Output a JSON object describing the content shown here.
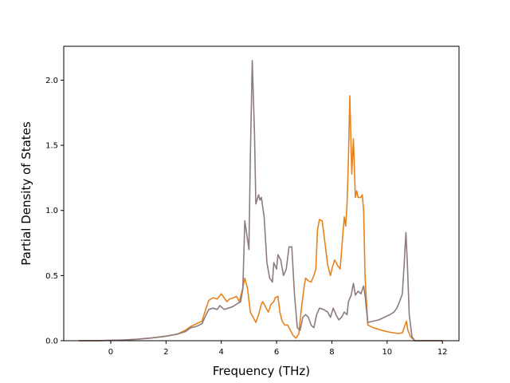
{
  "chart_data": {
    "type": "line",
    "title": "",
    "xlabel": "Frequency (THz)",
    "ylabel": "Partial Density of States",
    "xlim": [
      -1.7,
      12.6
    ],
    "ylim": [
      0,
      2.26
    ],
    "xticks": [
      0,
      2,
      4,
      6,
      8,
      10,
      12
    ],
    "xtick_labels": [
      "0",
      "2",
      "4",
      "6",
      "8",
      "10",
      "12"
    ],
    "yticks": [
      0,
      0.5,
      1.0,
      1.5,
      2.0
    ],
    "ytick_labels": [
      "0.0",
      "0.5",
      "1.0",
      "1.5",
      "2.0"
    ],
    "grid": false,
    "legend": "none",
    "series": [
      {
        "color": "#e8821e",
        "points": [
          [
            -1.15,
            0
          ],
          [
            -0.5,
            0
          ],
          [
            0,
            0.003
          ],
          [
            0.5,
            0.006
          ],
          [
            1.0,
            0.012
          ],
          [
            1.5,
            0.022
          ],
          [
            2.0,
            0.035
          ],
          [
            2.4,
            0.05
          ],
          [
            2.7,
            0.08
          ],
          [
            2.9,
            0.11
          ],
          [
            3.1,
            0.13
          ],
          [
            3.3,
            0.15
          ],
          [
            3.45,
            0.25
          ],
          [
            3.55,
            0.31
          ],
          [
            3.7,
            0.33
          ],
          [
            3.85,
            0.32
          ],
          [
            4.0,
            0.36
          ],
          [
            4.1,
            0.33
          ],
          [
            4.2,
            0.3
          ],
          [
            4.3,
            0.32
          ],
          [
            4.45,
            0.33
          ],
          [
            4.55,
            0.34
          ],
          [
            4.65,
            0.3
          ],
          [
            4.75,
            0.38
          ],
          [
            4.85,
            0.48
          ],
          [
            4.95,
            0.4
          ],
          [
            5.05,
            0.22
          ],
          [
            5.15,
            0.18
          ],
          [
            5.25,
            0.14
          ],
          [
            5.35,
            0.2
          ],
          [
            5.45,
            0.28
          ],
          [
            5.5,
            0.3
          ],
          [
            5.6,
            0.26
          ],
          [
            5.7,
            0.22
          ],
          [
            5.8,
            0.28
          ],
          [
            5.9,
            0.3
          ],
          [
            5.95,
            0.33
          ],
          [
            6.05,
            0.34
          ],
          [
            6.12,
            0.22
          ],
          [
            6.2,
            0.15
          ],
          [
            6.3,
            0.12
          ],
          [
            6.4,
            0.12
          ],
          [
            6.5,
            0.08
          ],
          [
            6.6,
            0.04
          ],
          [
            6.7,
            0.02
          ],
          [
            6.8,
            0.05
          ],
          [
            6.9,
            0.25
          ],
          [
            7.0,
            0.42
          ],
          [
            7.05,
            0.48
          ],
          [
            7.15,
            0.46
          ],
          [
            7.25,
            0.45
          ],
          [
            7.35,
            0.5
          ],
          [
            7.42,
            0.55
          ],
          [
            7.48,
            0.85
          ],
          [
            7.55,
            0.93
          ],
          [
            7.65,
            0.92
          ],
          [
            7.75,
            0.75
          ],
          [
            7.85,
            0.58
          ],
          [
            7.95,
            0.5
          ],
          [
            8.0,
            0.55
          ],
          [
            8.1,
            0.62
          ],
          [
            8.2,
            0.58
          ],
          [
            8.3,
            0.55
          ],
          [
            8.4,
            0.82
          ],
          [
            8.45,
            0.95
          ],
          [
            8.5,
            0.88
          ],
          [
            8.55,
            1.05
          ],
          [
            8.6,
            1.4
          ],
          [
            8.65,
            1.88
          ],
          [
            8.72,
            1.28
          ],
          [
            8.78,
            1.55
          ],
          [
            8.85,
            1.1
          ],
          [
            8.9,
            1.15
          ],
          [
            8.95,
            1.1
          ],
          [
            9.05,
            1.1
          ],
          [
            9.1,
            1.12
          ],
          [
            9.15,
            1.0
          ],
          [
            9.2,
            0.5
          ],
          [
            9.3,
            0.12
          ],
          [
            9.5,
            0.1
          ],
          [
            9.8,
            0.08
          ],
          [
            10.1,
            0.065
          ],
          [
            10.4,
            0.055
          ],
          [
            10.55,
            0.06
          ],
          [
            10.65,
            0.12
          ],
          [
            10.7,
            0.15
          ],
          [
            10.75,
            0.08
          ],
          [
            10.85,
            0.03
          ],
          [
            11.0,
            0
          ],
          [
            12.0,
            0
          ]
        ]
      },
      {
        "color": "#8c7b80",
        "points": [
          [
            -1.15,
            0
          ],
          [
            -0.5,
            0
          ],
          [
            0,
            0.003
          ],
          [
            0.5,
            0.006
          ],
          [
            1.0,
            0.012
          ],
          [
            1.5,
            0.022
          ],
          [
            2.0,
            0.035
          ],
          [
            2.4,
            0.05
          ],
          [
            2.7,
            0.07
          ],
          [
            2.9,
            0.1
          ],
          [
            3.1,
            0.11
          ],
          [
            3.3,
            0.13
          ],
          [
            3.45,
            0.2
          ],
          [
            3.55,
            0.24
          ],
          [
            3.7,
            0.25
          ],
          [
            3.85,
            0.24
          ],
          [
            3.95,
            0.27
          ],
          [
            4.1,
            0.24
          ],
          [
            4.25,
            0.25
          ],
          [
            4.4,
            0.26
          ],
          [
            4.55,
            0.28
          ],
          [
            4.7,
            0.3
          ],
          [
            4.78,
            0.4
          ],
          [
            4.85,
            0.92
          ],
          [
            4.9,
            0.85
          ],
          [
            5.0,
            0.7
          ],
          [
            5.05,
            1.4
          ],
          [
            5.12,
            2.15
          ],
          [
            5.2,
            1.6
          ],
          [
            5.25,
            1.05
          ],
          [
            5.35,
            1.12
          ],
          [
            5.4,
            1.08
          ],
          [
            5.45,
            1.1
          ],
          [
            5.55,
            0.95
          ],
          [
            5.65,
            0.6
          ],
          [
            5.75,
            0.48
          ],
          [
            5.85,
            0.45
          ],
          [
            5.9,
            0.6
          ],
          [
            6.0,
            0.55
          ],
          [
            6.05,
            0.66
          ],
          [
            6.15,
            0.62
          ],
          [
            6.25,
            0.5
          ],
          [
            6.35,
            0.55
          ],
          [
            6.45,
            0.72
          ],
          [
            6.55,
            0.72
          ],
          [
            6.65,
            0.35
          ],
          [
            6.75,
            0.1
          ],
          [
            6.85,
            0.08
          ],
          [
            6.95,
            0.18
          ],
          [
            7.05,
            0.2
          ],
          [
            7.15,
            0.18
          ],
          [
            7.25,
            0.12
          ],
          [
            7.35,
            0.1
          ],
          [
            7.45,
            0.2
          ],
          [
            7.55,
            0.25
          ],
          [
            7.7,
            0.24
          ],
          [
            7.85,
            0.22
          ],
          [
            7.95,
            0.18
          ],
          [
            8.05,
            0.25
          ],
          [
            8.15,
            0.2
          ],
          [
            8.25,
            0.16
          ],
          [
            8.35,
            0.18
          ],
          [
            8.45,
            0.22
          ],
          [
            8.55,
            0.2
          ],
          [
            8.6,
            0.3
          ],
          [
            8.7,
            0.35
          ],
          [
            8.78,
            0.44
          ],
          [
            8.85,
            0.35
          ],
          [
            8.95,
            0.38
          ],
          [
            9.05,
            0.36
          ],
          [
            9.15,
            0.42
          ],
          [
            9.2,
            0.35
          ],
          [
            9.3,
            0.14
          ],
          [
            9.5,
            0.15
          ],
          [
            9.7,
            0.16
          ],
          [
            9.9,
            0.18
          ],
          [
            10.1,
            0.2
          ],
          [
            10.25,
            0.22
          ],
          [
            10.35,
            0.25
          ],
          [
            10.45,
            0.3
          ],
          [
            10.55,
            0.36
          ],
          [
            10.62,
            0.6
          ],
          [
            10.68,
            0.83
          ],
          [
            10.73,
            0.6
          ],
          [
            10.8,
            0.2
          ],
          [
            10.9,
            0.03
          ],
          [
            11.0,
            0
          ],
          [
            12.0,
            0
          ]
        ]
      }
    ]
  }
}
